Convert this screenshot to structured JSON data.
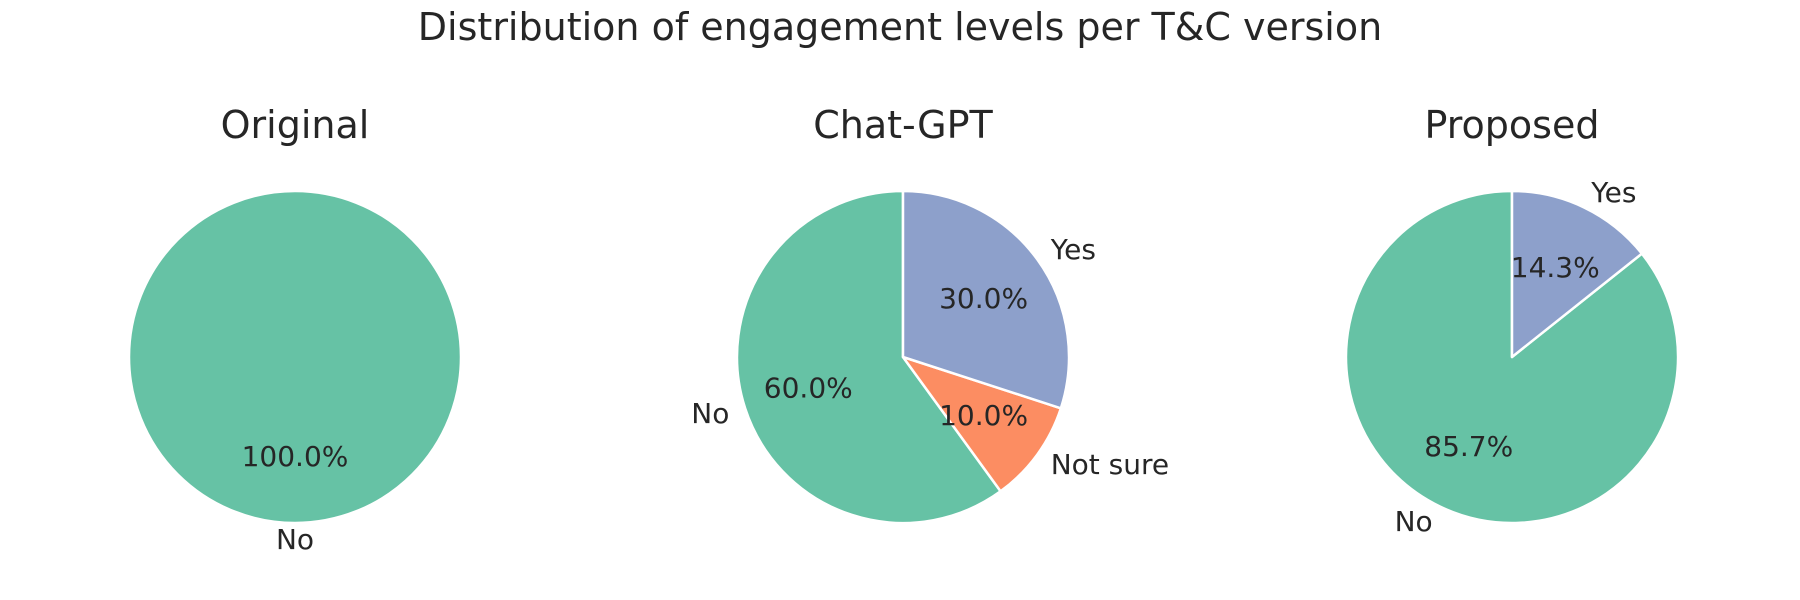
{
  "chart_data": {
    "type": "pie",
    "title": "Distribution of engagement levels per T&C version",
    "colors": {
      "No": "#66c2a5",
      "Not sure": "#fc8d62",
      "Yes": "#8da0cb"
    },
    "slice_edge_color": "#ffffff",
    "charts": [
      {
        "title": "Original",
        "slices": [
          {
            "label": "No",
            "value": 100.0,
            "pct_label": "100.0%"
          }
        ]
      },
      {
        "title": "Chat-GPT",
        "slices": [
          {
            "label": "No",
            "value": 60.0,
            "pct_label": "60.0%"
          },
          {
            "label": "Not sure",
            "value": 10.0,
            "pct_label": "10.0%"
          },
          {
            "label": "Yes",
            "value": 30.0,
            "pct_label": "30.0%"
          }
        ]
      },
      {
        "title": "Proposed",
        "slices": [
          {
            "label": "No",
            "value": 85.7,
            "pct_label": "85.7%"
          },
          {
            "label": "Yes",
            "value": 14.3,
            "pct_label": "14.3%"
          }
        ]
      }
    ]
  }
}
